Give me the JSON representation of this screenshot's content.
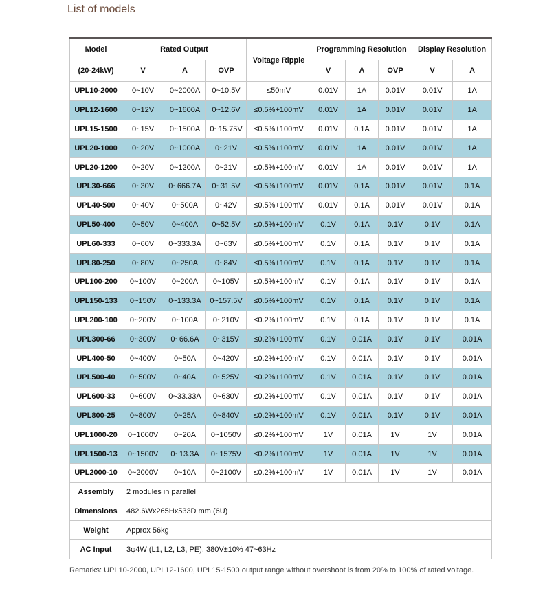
{
  "title": "List of models",
  "table": {
    "header": {
      "model": "Model",
      "model_sub": "(20-24kW)",
      "rated_output": "Rated Output",
      "voltage_ripple": "Voltage Ripple",
      "programming_resolution": "Programming Resolution",
      "display_resolution": "Display Resolution",
      "sub": [
        "V",
        "A",
        "OVP",
        "V",
        "A",
        "OVP",
        "V",
        "A"
      ]
    },
    "rows": [
      [
        "UPL10-2000",
        "0~10V",
        "0~2000A",
        "0~10.5V",
        "≤50mV",
        "0.01V",
        "1A",
        "0.01V",
        "0.01V",
        "1A"
      ],
      [
        "UPL12-1600",
        "0~12V",
        "0~1600A",
        "0~12.6V",
        "≤0.5%+100mV",
        "0.01V",
        "1A",
        "0.01V",
        "0.01V",
        "1A"
      ],
      [
        "UPL15-1500",
        "0~15V",
        "0~1500A",
        "0~15.75V",
        "≤0.5%+100mV",
        "0.01V",
        "0.1A",
        "0.01V",
        "0.01V",
        "1A"
      ],
      [
        "UPL20-1000",
        "0~20V",
        "0~1000A",
        "0~21V",
        "≤0.5%+100mV",
        "0.01V",
        "1A",
        "0.01V",
        "0.01V",
        "1A"
      ],
      [
        "UPL20-1200",
        "0~20V",
        "0~1200A",
        "0~21V",
        "≤0.5%+100mV",
        "0.01V",
        "1A",
        "0.01V",
        "0.01V",
        "1A"
      ],
      [
        "UPL30-666",
        "0~30V",
        "0~666.7A",
        "0~31.5V",
        "≤0.5%+100mV",
        "0.01V",
        "0.1A",
        "0.01V",
        "0.01V",
        "0.1A"
      ],
      [
        "UPL40-500",
        "0~40V",
        "0~500A",
        "0~42V",
        "≤0.5%+100mV",
        "0.01V",
        "0.1A",
        "0.01V",
        "0.01V",
        "0.1A"
      ],
      [
        "UPL50-400",
        "0~50V",
        "0~400A",
        "0~52.5V",
        "≤0.5%+100mV",
        "0.1V",
        "0.1A",
        "0.1V",
        "0.1V",
        "0.1A"
      ],
      [
        "UPL60-333",
        "0~60V",
        "0~333.3A",
        "0~63V",
        "≤0.5%+100mV",
        "0.1V",
        "0.1A",
        "0.1V",
        "0.1V",
        "0.1A"
      ],
      [
        "UPL80-250",
        "0~80V",
        "0~250A",
        "0~84V",
        "≤0.5%+100mV",
        "0.1V",
        "0.1A",
        "0.1V",
        "0.1V",
        "0.1A"
      ],
      [
        "UPL100-200",
        "0~100V",
        "0~200A",
        "0~105V",
        "≤0.5%+100mV",
        "0.1V",
        "0.1A",
        "0.1V",
        "0.1V",
        "0.1A"
      ],
      [
        "UPL150-133",
        "0~150V",
        "0~133.3A",
        "0~157.5V",
        "≤0.5%+100mV",
        "0.1V",
        "0.1A",
        "0.1V",
        "0.1V",
        "0.1A"
      ],
      [
        "UPL200-100",
        "0~200V",
        "0~100A",
        "0~210V",
        "≤0.2%+100mV",
        "0.1V",
        "0.1A",
        "0.1V",
        "0.1V",
        "0.1A"
      ],
      [
        "UPL300-66",
        "0~300V",
        "0~66.6A",
        "0~315V",
        "≤0.2%+100mV",
        "0.1V",
        "0.01A",
        "0.1V",
        "0.1V",
        "0.01A"
      ],
      [
        "UPL400-50",
        "0~400V",
        "0~50A",
        "0~420V",
        "≤0.2%+100mV",
        "0.1V",
        "0.01A",
        "0.1V",
        "0.1V",
        "0.01A"
      ],
      [
        "UPL500-40",
        "0~500V",
        "0~40A",
        "0~525V",
        "≤0.2%+100mV",
        "0.1V",
        "0.01A",
        "0.1V",
        "0.1V",
        "0.01A"
      ],
      [
        "UPL600-33",
        "0~600V",
        "0~33.33A",
        "0~630V",
        "≤0.2%+100mV",
        "0.1V",
        "0.01A",
        "0.1V",
        "0.1V",
        "0.01A"
      ],
      [
        "UPL800-25",
        "0~800V",
        "0~25A",
        "0~840V",
        "≤0.2%+100mV",
        "0.1V",
        "0.01A",
        "0.1V",
        "0.1V",
        "0.01A"
      ],
      [
        "UPL1000-20",
        "0~1000V",
        "0~20A",
        "0~1050V",
        "≤0.2%+100mV",
        "1V",
        "0.01A",
        "1V",
        "1V",
        "0.01A"
      ],
      [
        "UPL1500-13",
        "0~1500V",
        "0~13.3A",
        "0~1575V",
        "≤0.2%+100mV",
        "1V",
        "0.01A",
        "1V",
        "1V",
        "0.01A"
      ],
      [
        "UPL2000-10",
        "0~2000V",
        "0~10A",
        "0~2100V",
        "≤0.2%+100mV",
        "1V",
        "0.01A",
        "1V",
        "1V",
        "0.01A"
      ]
    ],
    "specs": [
      [
        "Assembly",
        "2 modules in parallel"
      ],
      [
        "Dimensions",
        "482.6Wx265Hx533D mm (6U)"
      ],
      [
        "Weight",
        "Approx 56kg"
      ],
      [
        "AC Input",
        "3φ4W (L1, L2, L3, PE), 380V±10% 47~63Hz"
      ]
    ]
  },
  "remarks": "Remarks: UPL10-2000, UPL12-1600, UPL15-1500 output range without overshoot is from 20% to 100% of rated voltage."
}
